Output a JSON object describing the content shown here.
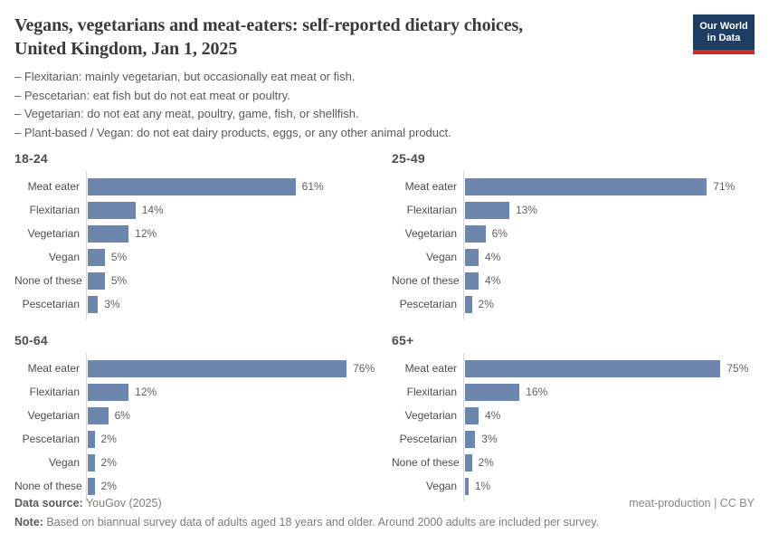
{
  "header": {
    "title_line1": "Vegans, vegetarians and meat-eaters: self-reported dietary choices,",
    "title_line2": "United Kingdom, Jan 1, 2025",
    "logo": {
      "line1": "Our World",
      "line2": "in Data",
      "bg_color": "#1d3d63",
      "accent_color": "#cf2d24"
    }
  },
  "subtitle": {
    "lines": [
      "– Flexitarian: mainly vegetarian, but occasionally eat meat or fish.",
      "– Pescetarian: eat fish but do not eat meat or poultry.",
      "– Vegetarian: do not eat any meat, poultry, game, fish, or shellfish.",
      "– Plant-based / Vegan: do not eat dairy products, eggs, or any other animal product."
    ]
  },
  "chart_data": {
    "type": "bar",
    "orientation": "horizontal",
    "unit": "%",
    "x_scale_max": 85,
    "grid": false,
    "bar_color": "#6d86ad",
    "panels": [
      {
        "age_group": "18-24",
        "bars": [
          {
            "label": "Meat eater",
            "value": 61
          },
          {
            "label": "Flexitarian",
            "value": 14
          },
          {
            "label": "Vegetarian",
            "value": 12
          },
          {
            "label": "Vegan",
            "value": 5
          },
          {
            "label": "None of these",
            "value": 5
          },
          {
            "label": "Pescetarian",
            "value": 3
          }
        ]
      },
      {
        "age_group": "25-49",
        "bars": [
          {
            "label": "Meat eater",
            "value": 71
          },
          {
            "label": "Flexitarian",
            "value": 13
          },
          {
            "label": "Vegetarian",
            "value": 6
          },
          {
            "label": "Vegan",
            "value": 4
          },
          {
            "label": "None of these",
            "value": 4
          },
          {
            "label": "Pescetarian",
            "value": 2
          }
        ]
      },
      {
        "age_group": "50-64",
        "bars": [
          {
            "label": "Meat eater",
            "value": 76
          },
          {
            "label": "Flexitarian",
            "value": 12
          },
          {
            "label": "Vegetarian",
            "value": 6
          },
          {
            "label": "Pescetarian",
            "value": 2
          },
          {
            "label": "Vegan",
            "value": 2
          },
          {
            "label": "None of these",
            "value": 2
          }
        ]
      },
      {
        "age_group": "65+",
        "bars": [
          {
            "label": "Meat eater",
            "value": 75
          },
          {
            "label": "Flexitarian",
            "value": 16
          },
          {
            "label": "Vegetarian",
            "value": 4
          },
          {
            "label": "Pescetarian",
            "value": 3
          },
          {
            "label": "None of these",
            "value": 2
          },
          {
            "label": "Vegan",
            "value": 1
          }
        ]
      }
    ]
  },
  "footer": {
    "data_source_label": "Data source:",
    "data_source_value": " YouGov (2025)",
    "attribution": "meat-production | CC BY",
    "note_label": "Note:",
    "note_text": " Based on biannual survey data of adults aged 18 years and older. Around 2000 adults are included per survey."
  }
}
